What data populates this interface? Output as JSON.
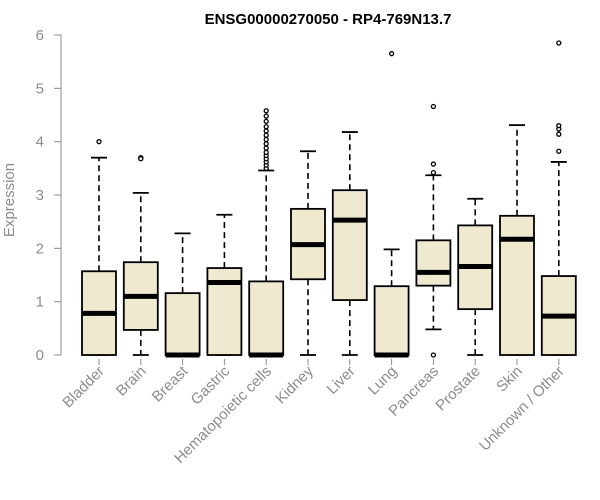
{
  "chart_data": {
    "type": "boxplot",
    "title": "ENSG00000270050 - RP4-769N13.7",
    "xlabel": "",
    "ylabel": "Expression",
    "ylim": [
      0,
      6
    ],
    "yticks": [
      0,
      1,
      2,
      3,
      4,
      5,
      6
    ],
    "box_color": "#efe9d0",
    "line_color": "#000000",
    "axis_color": "#8c8c8c",
    "categories": [
      "Bladder",
      "Brain",
      "Breast",
      "Gastric",
      "Hematopoietic cells",
      "Kidney",
      "Liver",
      "Lung",
      "Pancreas",
      "Prostate",
      "Skin",
      "Unknown / Other"
    ],
    "series": [
      {
        "name": "Bladder",
        "min": 0,
        "q1": 0,
        "median": 0.78,
        "q3": 1.57,
        "max": 3.7,
        "outliers": [
          4.0
        ]
      },
      {
        "name": "Brain",
        "min": 0,
        "q1": 0.47,
        "median": 1.1,
        "q3": 1.74,
        "max": 3.04,
        "outliers": [
          3.7,
          3.68
        ]
      },
      {
        "name": "Breast",
        "min": 0,
        "q1": 0,
        "median": 0,
        "q3": 1.16,
        "max": 2.28,
        "outliers": []
      },
      {
        "name": "Gastric",
        "min": 0,
        "q1": 0,
        "median": 1.36,
        "q3": 1.63,
        "max": 2.63,
        "outliers": []
      },
      {
        "name": "Hematopoietic cells",
        "min": 0,
        "q1": 0,
        "median": 0,
        "q3": 1.38,
        "max": 3.46,
        "outliers": [
          3.5,
          3.56,
          3.62,
          3.68,
          3.74,
          3.8,
          3.88,
          3.96,
          4.04,
          4.12,
          4.2,
          4.28,
          4.38,
          4.48,
          4.58
        ]
      },
      {
        "name": "Kidney",
        "min": 0,
        "q1": 1.42,
        "median": 2.07,
        "q3": 2.74,
        "max": 3.82,
        "outliers": []
      },
      {
        "name": "Liver",
        "min": 0,
        "q1": 1.03,
        "median": 2.53,
        "q3": 3.09,
        "max": 4.18,
        "outliers": []
      },
      {
        "name": "Lung",
        "min": 0,
        "q1": 0,
        "median": 0,
        "q3": 1.29,
        "max": 1.98,
        "outliers": [
          5.65
        ]
      },
      {
        "name": "Pancreas",
        "min": 0.48,
        "q1": 1.3,
        "median": 1.55,
        "q3": 2.15,
        "max": 3.37,
        "outliers": [
          0.0,
          3.42,
          3.58,
          4.66
        ]
      },
      {
        "name": "Prostate",
        "min": 0,
        "q1": 0.86,
        "median": 1.66,
        "q3": 2.43,
        "max": 2.93,
        "outliers": []
      },
      {
        "name": "Skin",
        "min": 0,
        "q1": 0,
        "median": 2.17,
        "q3": 2.61,
        "max": 4.31,
        "outliers": []
      },
      {
        "name": "Unknown / Other",
        "min": 0,
        "q1": 0,
        "median": 0.73,
        "q3": 1.48,
        "max": 3.62,
        "outliers": [
          3.82,
          4.14,
          4.24,
          4.3,
          5.85
        ]
      }
    ]
  }
}
